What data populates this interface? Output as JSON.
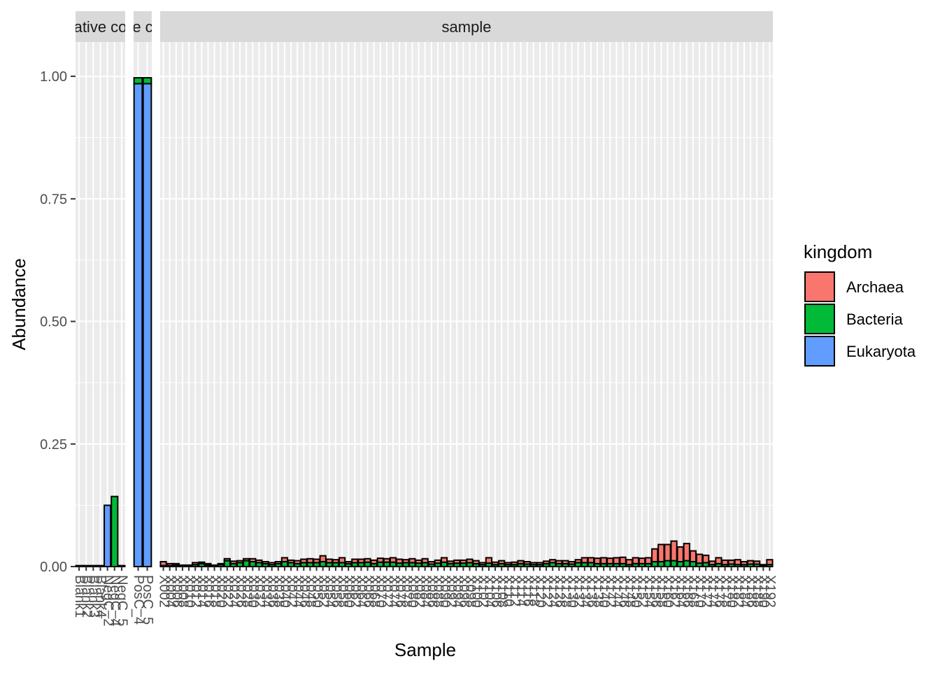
{
  "chart_data": {
    "type": "bar",
    "stacked": true,
    "faceted": true,
    "xlabel": "Sample",
    "ylabel": "Abundance",
    "ylim": [
      0,
      1.07
    ],
    "y_ticks": [
      "0.00",
      "0.25",
      "0.50",
      "0.75",
      "1.00"
    ],
    "y_tick_values": [
      0,
      0.25,
      0.5,
      0.75,
      1.0
    ],
    "grid": true,
    "legend": {
      "title": "kingdom",
      "position": "right",
      "entries": [
        {
          "name": "Archaea",
          "color": "#F8766D"
        },
        {
          "name": "Bacteria",
          "color": "#00BA38"
        },
        {
          "name": "Eukaryota",
          "color": "#619CFF"
        }
      ]
    },
    "panels": [
      {
        "strip": "negative control",
        "strip_visible": "ative co",
        "categories": [
          "Blank1",
          "Blank2",
          "Blank3",
          "Blank4",
          "NegC_2",
          "NegC_4",
          "NegC_5"
        ],
        "series": [
          {
            "name": "Archaea",
            "values": [
              0,
              0,
              0,
              0,
              0,
              0,
              0
            ]
          },
          {
            "name": "Bacteria",
            "values": [
              0,
              0,
              0,
              0,
              0,
              0.143,
              0.002
            ]
          },
          {
            "name": "Eukaryota",
            "values": [
              0.002,
              0.002,
              0.002,
              0.002,
              0.125,
              0,
              0
            ]
          }
        ]
      },
      {
        "strip": "positive control",
        "strip_visible": "e c",
        "categories": [
          "PosC_4",
          "PosC_5"
        ],
        "series": [
          {
            "name": "Archaea",
            "values": [
              0,
              0
            ]
          },
          {
            "name": "Bacteria",
            "values": [
              0.012,
              0.012
            ]
          },
          {
            "name": "Eukaryota",
            "values": [
              0.985,
              0.985
            ]
          }
        ]
      },
      {
        "strip": "sample",
        "strip_visible": "sample",
        "categories": [
          "X002",
          "X004",
          "X006",
          "X008",
          "X010",
          "X012",
          "X014",
          "X016",
          "X018",
          "X020",
          "X022",
          "X024",
          "X026",
          "X028",
          "X030",
          "X032",
          "X034",
          "X036",
          "X038",
          "X040",
          "X042",
          "X044",
          "X046",
          "X048",
          "X050",
          "X052",
          "X054",
          "X056",
          "X058",
          "X060",
          "X062",
          "X064",
          "X066",
          "X068",
          "X070",
          "X072",
          "X074",
          "X076",
          "X078",
          "X080",
          "X082",
          "X084",
          "X086",
          "X088",
          "X090",
          "X092",
          "X094",
          "X096",
          "X098",
          "X100",
          "X102",
          "X104",
          "X106",
          "X108",
          "X110",
          "X112",
          "X114",
          "X116",
          "X118",
          "X120",
          "X122",
          "X124",
          "X126",
          "X128",
          "X130",
          "X132",
          "X134",
          "X136",
          "X138",
          "X140",
          "X142",
          "X144",
          "X146",
          "X148",
          "X150",
          "X152",
          "X154",
          "X156",
          "X158",
          "X160",
          "X162",
          "X164",
          "X166",
          "X168",
          "X170",
          "X172",
          "X174",
          "X176",
          "X178",
          "X180",
          "X182",
          "X184",
          "X186",
          "X188",
          "X190",
          "X192"
        ],
        "series": [
          {
            "name": "Archaea",
            "values": [
              0.008,
              0.004,
              0.003,
              0.002,
              0.002,
              0.004,
              0.003,
              0.003,
              0.002,
              0.002,
              0.004,
              0.005,
              0.004,
              0.004,
              0.006,
              0.005,
              0.004,
              0.004,
              0.004,
              0.008,
              0.005,
              0.006,
              0.007,
              0.008,
              0.007,
              0.012,
              0.007,
              0.006,
              0.01,
              0.004,
              0.007,
              0.007,
              0.007,
              0.007,
              0.008,
              0.007,
              0.009,
              0.008,
              0.006,
              0.008,
              0.006,
              0.008,
              0.005,
              0.006,
              0.009,
              0.005,
              0.006,
              0.006,
              0.007,
              0.006,
              0.004,
              0.011,
              0.005,
              0.006,
              0.004,
              0.005,
              0.006,
              0.005,
              0.004,
              0.004,
              0.005,
              0.006,
              0.006,
              0.006,
              0.005,
              0.006,
              0.01,
              0.01,
              0.011,
              0.012,
              0.011,
              0.012,
              0.013,
              0.01,
              0.012,
              0.011,
              0.012,
              0.026,
              0.035,
              0.033,
              0.04,
              0.03,
              0.035,
              0.022,
              0.018,
              0.015,
              0.007,
              0.012,
              0.009,
              0.008,
              0.01,
              0.006,
              0.007,
              0.006,
              0.002,
              0.01
            ]
          },
          {
            "name": "Bacteria",
            "values": [
              0.002,
              0.002,
              0.003,
              0.001,
              0.001,
              0.004,
              0.006,
              0.003,
              0.001,
              0.004,
              0.012,
              0.006,
              0.008,
              0.012,
              0.01,
              0.008,
              0.006,
              0.004,
              0.006,
              0.01,
              0.008,
              0.006,
              0.008,
              0.008,
              0.008,
              0.01,
              0.008,
              0.008,
              0.008,
              0.006,
              0.008,
              0.008,
              0.009,
              0.006,
              0.009,
              0.009,
              0.009,
              0.007,
              0.008,
              0.008,
              0.007,
              0.008,
              0.005,
              0.007,
              0.009,
              0.006,
              0.007,
              0.007,
              0.008,
              0.006,
              0.004,
              0.007,
              0.004,
              0.006,
              0.004,
              0.004,
              0.006,
              0.005,
              0.004,
              0.004,
              0.006,
              0.008,
              0.006,
              0.006,
              0.005,
              0.008,
              0.008,
              0.008,
              0.006,
              0.006,
              0.006,
              0.006,
              0.006,
              0.004,
              0.006,
              0.006,
              0.006,
              0.01,
              0.01,
              0.012,
              0.012,
              0.01,
              0.012,
              0.01,
              0.007,
              0.008,
              0.004,
              0.006,
              0.004,
              0.005,
              0.004,
              0.004,
              0.005,
              0.005,
              0.002,
              0.004
            ]
          },
          {
            "name": "Eukaryota",
            "values": [
              0,
              0,
              0,
              0,
              0,
              0,
              0,
              0,
              0,
              0,
              0,
              0,
              0,
              0,
              0,
              0,
              0,
              0,
              0,
              0,
              0,
              0,
              0,
              0,
              0,
              0,
              0,
              0,
              0,
              0,
              0,
              0,
              0,
              0,
              0,
              0,
              0,
              0,
              0,
              0,
              0,
              0,
              0,
              0,
              0,
              0,
              0,
              0,
              0,
              0,
              0,
              0,
              0,
              0,
              0,
              0,
              0,
              0,
              0,
              0,
              0,
              0,
              0,
              0,
              0,
              0,
              0,
              0,
              0,
              0,
              0,
              0,
              0,
              0,
              0,
              0,
              0,
              0,
              0,
              0,
              0,
              0,
              0,
              0,
              0,
              0,
              0,
              0,
              0,
              0,
              0,
              0,
              0,
              0,
              0,
              0
            ]
          }
        ]
      }
    ]
  }
}
